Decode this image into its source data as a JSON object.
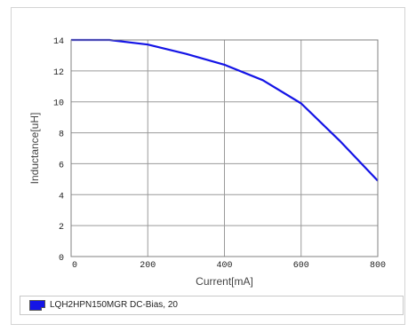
{
  "chart_data": {
    "type": "line",
    "title": "",
    "xlabel": "Current[mA]",
    "ylabel": "Inductance[uH]",
    "xlim": [
      0,
      800
    ],
    "ylim": [
      0,
      14
    ],
    "x_ticks": [
      0,
      200,
      400,
      600,
      800
    ],
    "y_ticks": [
      0,
      2,
      4,
      6,
      8,
      10,
      12,
      14
    ],
    "grid": true,
    "legend_position": "bottom",
    "series": [
      {
        "name": "LQH2HPN150MGR DC-Bias, 20",
        "color": "#1414e6",
        "x": [
          0,
          100,
          200,
          300,
          400,
          500,
          600,
          700,
          800
        ],
        "y": [
          14.0,
          14.0,
          13.7,
          13.1,
          12.4,
          11.4,
          9.9,
          7.5,
          4.9
        ]
      }
    ]
  }
}
